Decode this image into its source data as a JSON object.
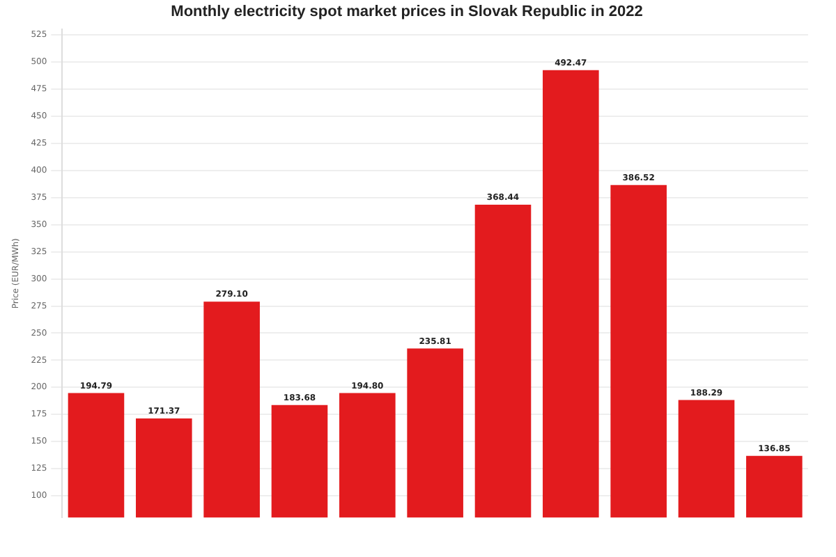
{
  "chart_data": {
    "type": "bar",
    "title": "Monthly electricity spot market prices in Slovak Republic in 2022",
    "ylabel": "Price (EUR/MWh)",
    "categories": [
      null,
      null,
      null,
      null,
      null,
      null,
      null,
      null,
      null,
      null,
      null
    ],
    "values": [
      194.79,
      171.37,
      279.1,
      183.68,
      194.8,
      235.81,
      368.44,
      492.47,
      386.52,
      188.29,
      136.85
    ],
    "value_labels": [
      "194.79",
      "171.37",
      "279.10",
      "183.68",
      "194.80",
      "235.81",
      "368.44",
      "492.47",
      "386.52",
      "188.29",
      "136.85"
    ],
    "color": "#e31b1e",
    "grid": "y",
    "ylim": [
      80,
      530
    ],
    "yticks": [
      100,
      125,
      150,
      175,
      200,
      225,
      250,
      275,
      300,
      325,
      350,
      375,
      400,
      425,
      450,
      475,
      500,
      525
    ]
  }
}
